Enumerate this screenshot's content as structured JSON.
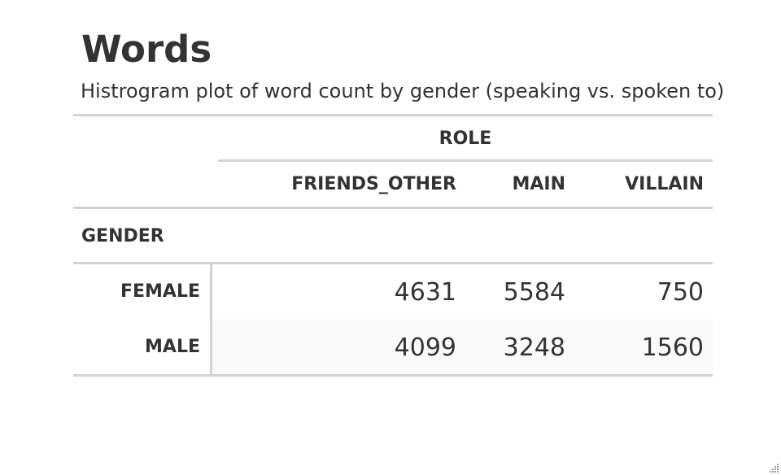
{
  "table": {
    "title": "Words",
    "subtitle": "Histrogram plot of word count by gender (speaking vs. spoken to)",
    "spanner_label": "ROLE",
    "columns": [
      "FRIENDS_OTHER",
      "MAIN",
      "VILLAIN"
    ],
    "group_label": "GENDER",
    "rows": [
      {
        "label": "FEMALE",
        "values": [
          "4631",
          "5584",
          "750"
        ]
      },
      {
        "label": "MALE",
        "values": [
          "4099",
          "3248",
          "1560"
        ]
      }
    ]
  },
  "colors": {
    "text": "#333333",
    "rule": "#d3d3d3",
    "stripe": "#fafafa"
  },
  "icons": {
    "resize_handle": "resize-grip-icon"
  }
}
